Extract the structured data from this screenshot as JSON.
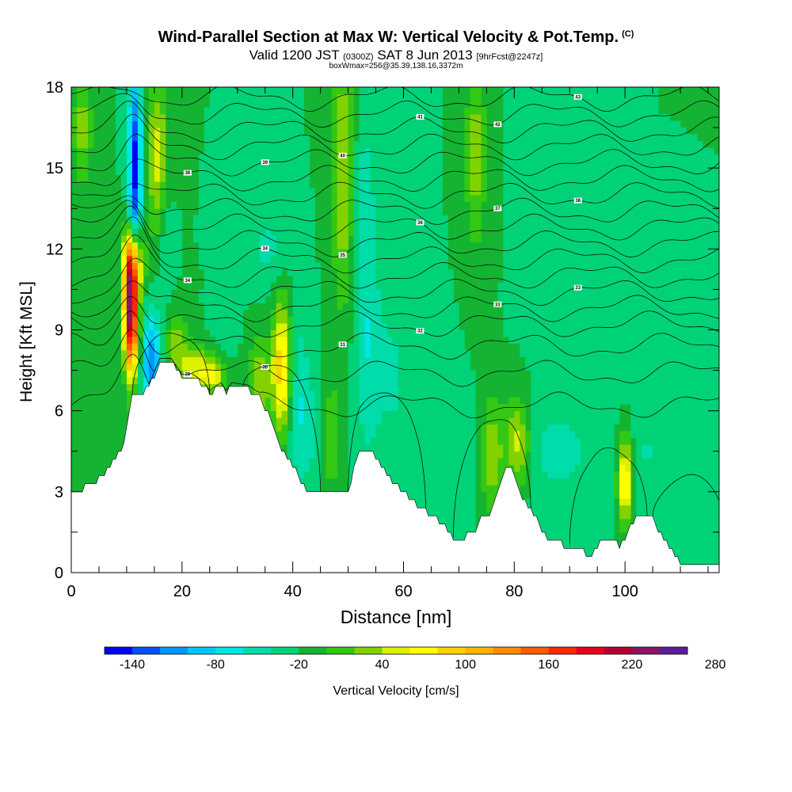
{
  "header": {
    "title": "Wind-Parallel Section at Max W: Vertical Velocity & Pot.Temp.",
    "copyright": "(C)",
    "valid_prefix": "Valid 1200 JST",
    "utc": "(0300Z)",
    "valid_date": "SAT 8 Jun 2013",
    "forecast": "[9hrFcst@2247z]",
    "boxinfo": "boxWmax=256@35.39,138.16,3372m"
  },
  "chart_data": {
    "type": "heatmap",
    "xlabel": "Distance [nm]",
    "ylabel": "Height [Kft MSL]",
    "xlim": [
      0,
      117
    ],
    "ylim": [
      0,
      18
    ],
    "x_ticks": [
      "0",
      "20",
      "40",
      "60",
      "80",
      "100"
    ],
    "x_tick_values": [
      0,
      20,
      40,
      60,
      80,
      100
    ],
    "y_ticks": [
      "0",
      "3",
      "6",
      "9",
      "12",
      "15",
      "18"
    ],
    "y_tick_values": [
      0,
      3,
      6,
      9,
      12,
      15,
      18
    ],
    "colorbar": {
      "label": "Vertical Velocity [cm/s]",
      "levels_min": -160,
      "level_step": 20,
      "tick_labels": [
        "-140",
        "-80",
        "-20",
        "40",
        "100",
        "160",
        "220",
        "280"
      ],
      "tick_values": [
        -140,
        -80,
        -20,
        40,
        100,
        160,
        220,
        280
      ],
      "colors": [
        "#0000ff",
        "#0050ff",
        "#0096ff",
        "#00c8ff",
        "#00e6e6",
        "#00dcaa",
        "#00d278",
        "#14b432",
        "#32c814",
        "#82d200",
        "#dcf000",
        "#ffff00",
        "#ffd200",
        "#ffb400",
        "#ff8c00",
        "#ff5a00",
        "#ff2800",
        "#e6001e",
        "#b40032",
        "#8c1464",
        "#5a1e96"
      ]
    },
    "background_w_cm_s": -20,
    "terrain_kft": [
      [
        0,
        2.9
      ],
      [
        2,
        3.1
      ],
      [
        3,
        3.2
      ],
      [
        4,
        3.3
      ],
      [
        6,
        3.6
      ],
      [
        7,
        3.9
      ],
      [
        8,
        4.2
      ],
      [
        9,
        4.5
      ],
      [
        10,
        5.3
      ],
      [
        11,
        6.5
      ],
      [
        14,
        6.8
      ],
      [
        16,
        7.8
      ],
      [
        18,
        7.8
      ],
      [
        19,
        7.5
      ],
      [
        20,
        7.2
      ],
      [
        22,
        7.2
      ],
      [
        24,
        6.9
      ],
      [
        25,
        6.6
      ],
      [
        27,
        6.9
      ],
      [
        28,
        6.6
      ],
      [
        29,
        6.9
      ],
      [
        32,
        6.8
      ],
      [
        34,
        6.5
      ],
      [
        36,
        5.7
      ],
      [
        37,
        5.2
      ],
      [
        38,
        4.6
      ],
      [
        39,
        4.2
      ],
      [
        40,
        3.9
      ],
      [
        41,
        3.6
      ],
      [
        42,
        3.2
      ],
      [
        43,
        2.9
      ],
      [
        47,
        2.9
      ],
      [
        50,
        3.0
      ],
      [
        52,
        4.5
      ],
      [
        54,
        4.5
      ],
      [
        56,
        3.9
      ],
      [
        58,
        3.3
      ],
      [
        60,
        3.0
      ],
      [
        62,
        2.6
      ],
      [
        64,
        2.3
      ],
      [
        66,
        2.0
      ],
      [
        68,
        1.6
      ],
      [
        69,
        1.3
      ],
      [
        71,
        1.3
      ],
      [
        73,
        1.6
      ],
      [
        74,
        2.0
      ],
      [
        76,
        2.3
      ],
      [
        77,
        3.0
      ],
      [
        78,
        3.6
      ],
      [
        79,
        3.9
      ],
      [
        80,
        3.6
      ],
      [
        81,
        3.0
      ],
      [
        83,
        2.3
      ],
      [
        85,
        1.6
      ],
      [
        86,
        1.3
      ],
      [
        89,
        1.0
      ],
      [
        92,
        1.0
      ],
      [
        93,
        0.7
      ],
      [
        94,
        0.7
      ],
      [
        95,
        1.0
      ],
      [
        96,
        1.3
      ],
      [
        98,
        1.3
      ],
      [
        99,
        1.0
      ],
      [
        100,
        1.3
      ],
      [
        102,
        2.0
      ],
      [
        105,
        2.0
      ],
      [
        106,
        1.6
      ],
      [
        108,
        1.0
      ],
      [
        110,
        0.4
      ],
      [
        117,
        0.4
      ]
    ],
    "w_features": [
      {
        "x": 10.8,
        "y": 9.7,
        "sx": 0.9,
        "sy": 1.6,
        "w": 250
      },
      {
        "x": 11.2,
        "y": 11.6,
        "sx": 1.3,
        "sy": 0.9,
        "w": 90
      },
      {
        "x": 11.5,
        "y": 14.8,
        "sx": 0.8,
        "sy": 2.8,
        "w": -150
      },
      {
        "x": 14.5,
        "y": 7.8,
        "sx": 1.1,
        "sy": 1.2,
        "w": -120
      },
      {
        "x": 15.5,
        "y": 15.5,
        "sx": 1.3,
        "sy": 2.0,
        "w": 50
      },
      {
        "x": 17,
        "y": 12.5,
        "sx": 0.9,
        "sy": 1.5,
        "w": -40
      },
      {
        "x": 19,
        "y": 8.5,
        "sx": 1.3,
        "sy": 0.8,
        "w": 30
      },
      {
        "x": 22,
        "y": 7.6,
        "sx": 1.7,
        "sy": 0.6,
        "w": 50
      },
      {
        "x": 25.5,
        "y": 7.3,
        "sx": 1.6,
        "sy": 0.5,
        "w": 60
      },
      {
        "x": 27.5,
        "y": 8.8,
        "sx": 1.5,
        "sy": 0.6,
        "w": -30
      },
      {
        "x": 34,
        "y": 7.0,
        "sx": 1.4,
        "sy": 1.2,
        "w": 40
      },
      {
        "x": 38,
        "y": 7.6,
        "sx": 1.2,
        "sy": 1.7,
        "w": 95
      },
      {
        "x": 41,
        "y": 6.5,
        "sx": 1.5,
        "sy": 2.2,
        "w": -55
      },
      {
        "x": 35.5,
        "y": 12.0,
        "sx": 2.5,
        "sy": 1.0,
        "w": -45
      },
      {
        "x": 49,
        "y": 14.8,
        "sx": 1.4,
        "sy": 3.5,
        "w": 40
      },
      {
        "x": 53,
        "y": 13.0,
        "sx": 1.4,
        "sy": 2.8,
        "w": -55
      },
      {
        "x": 53.5,
        "y": 7.5,
        "sx": 1.6,
        "sy": 2.5,
        "w": -50
      },
      {
        "x": 58,
        "y": 7.8,
        "sx": 2.5,
        "sy": 3.0,
        "w": -40
      },
      {
        "x": 43,
        "y": 5.2,
        "sx": 1.4,
        "sy": 1.5,
        "w": -40
      },
      {
        "x": 47,
        "y": 5.0,
        "sx": 1.0,
        "sy": 1.5,
        "w": 20
      },
      {
        "x": 73,
        "y": 15.5,
        "sx": 1.3,
        "sy": 2.6,
        "w": 30
      },
      {
        "x": 76,
        "y": 4.3,
        "sx": 1.3,
        "sy": 1.5,
        "w": 40
      },
      {
        "x": 80.5,
        "y": 4.8,
        "sx": 1.7,
        "sy": 1.2,
        "w": 55
      },
      {
        "x": 88,
        "y": 4.5,
        "sx": 6.0,
        "sy": 1.6,
        "w": -45
      },
      {
        "x": 100,
        "y": 3.4,
        "sx": 0.9,
        "sy": 1.1,
        "w": 90
      },
      {
        "x": 104,
        "y": 4.5,
        "sx": 2.0,
        "sy": 1.5,
        "w": -40
      },
      {
        "x": 64,
        "y": 5.0,
        "sx": 4.0,
        "sy": 2.0,
        "w": -30
      },
      {
        "x": 112,
        "y": 3.0,
        "sx": 2.5,
        "sy": 1.5,
        "w": -40
      },
      {
        "x": 2,
        "y": 16.5,
        "sx": 1.2,
        "sy": 1.5,
        "w": 30
      },
      {
        "x": 86,
        "y": 12.5,
        "sx": 2.5,
        "sy": 2.5,
        "w": -30
      }
    ],
    "theta_contours": [
      {
        "base": 6.2,
        "label": "29"
      },
      {
        "base": 7.4,
        "label": "30"
      },
      {
        "base": 8.4,
        "label": "31"
      },
      {
        "base": 9.2,
        "label": "32"
      },
      {
        "base": 9.8,
        "label": "33"
      },
      {
        "base": 10.4,
        "label": "33"
      },
      {
        "base": 11.0,
        "label": "34"
      },
      {
        "base": 11.6,
        "label": "34"
      },
      {
        "base": 12.2,
        "label": "35"
      },
      {
        "base": 12.8,
        "label": "36"
      },
      {
        "base": 13.4,
        "label": "37"
      },
      {
        "base": 14.0,
        "label": "38"
      },
      {
        "base": 14.6,
        "label": "38"
      },
      {
        "base": 15.2,
        "label": "39"
      },
      {
        "base": 15.8,
        "label": "40"
      },
      {
        "base": 16.4,
        "label": "41"
      },
      {
        "base": 17.0,
        "label": "42"
      },
      {
        "base": 17.6,
        "label": "43"
      }
    ]
  }
}
